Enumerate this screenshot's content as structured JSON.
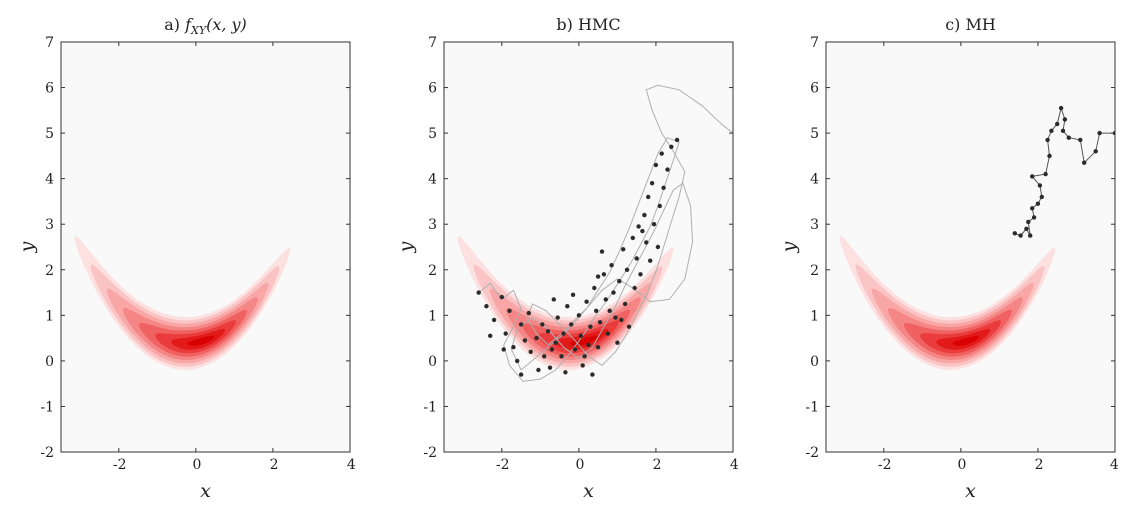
{
  "figure": {
    "background_color": "#f9f9f9",
    "contour_colors": [
      "#fde0e0",
      "#fbc4c4",
      "#f9a6a6",
      "#f58686",
      "#f06262",
      "#ea3c3c",
      "#e21a1a",
      "#d80000"
    ],
    "sample_color": "#2b2b2b",
    "trajectory_color": "#b0b0b0"
  },
  "chart_data": [
    {
      "type": "heatmap",
      "title": "a) f_XY(x, y)",
      "title_parts": {
        "prefix": "a) ",
        "f": "f",
        "sub": "XY",
        "args": "(x, y)"
      },
      "xlabel": "x",
      "ylabel": "y",
      "xlim": [
        -3.5,
        4
      ],
      "ylim": [
        -2,
        7
      ],
      "xticks": [
        "-2",
        "0",
        "2",
        "4"
      ],
      "yticks": [
        "-2",
        "-1",
        "0",
        "1",
        "2",
        "3",
        "4",
        "5",
        "6",
        "7"
      ],
      "grid": false,
      "density": "banana-shaped bivariate density (filled contours)"
    },
    {
      "type": "scatter",
      "title": "b) HMC",
      "xlabel": "x",
      "ylabel": "y",
      "xlim": [
        -3.5,
        4
      ],
      "ylim": [
        -2,
        7
      ],
      "xticks": [
        "-2",
        "0",
        "2",
        "4"
      ],
      "yticks": [
        "-2",
        "-1",
        "0",
        "1",
        "2",
        "3",
        "4",
        "5",
        "6",
        "7"
      ],
      "grid": false,
      "samples": [
        [
          -2.6,
          1.5
        ],
        [
          -2.4,
          1.2
        ],
        [
          -2.2,
          0.9
        ],
        [
          -2.0,
          1.4
        ],
        [
          -1.9,
          0.6
        ],
        [
          -1.7,
          0.3
        ],
        [
          -1.6,
          0.0
        ],
        [
          -1.5,
          0.8
        ],
        [
          -1.4,
          0.45
        ],
        [
          -1.3,
          1.05
        ],
        [
          -1.25,
          0.2
        ],
        [
          -1.1,
          0.5
        ],
        [
          -1.05,
          -0.2
        ],
        [
          -0.95,
          0.8
        ],
        [
          -0.9,
          0.1
        ],
        [
          -0.8,
          0.65
        ],
        [
          -0.75,
          -0.15
        ],
        [
          -0.6,
          0.4
        ],
        [
          -0.55,
          0.95
        ],
        [
          -0.45,
          0.1
        ],
        [
          -0.4,
          0.6
        ],
        [
          -0.35,
          -0.25
        ],
        [
          -0.2,
          0.8
        ],
        [
          -0.1,
          0.25
        ],
        [
          0.0,
          1.0
        ],
        [
          0.05,
          0.55
        ],
        [
          0.15,
          0.1
        ],
        [
          0.2,
          1.3
        ],
        [
          0.3,
          0.75
        ],
        [
          0.35,
          -0.3
        ],
        [
          0.4,
          1.6
        ],
        [
          0.45,
          1.1
        ],
        [
          0.5,
          0.3
        ],
        [
          0.55,
          0.85
        ],
        [
          0.65,
          1.9
        ],
        [
          0.7,
          1.35
        ],
        [
          0.75,
          0.6
        ],
        [
          0.85,
          2.1
        ],
        [
          0.9,
          1.5
        ],
        [
          0.95,
          0.95
        ],
        [
          1.0,
          0.4
        ],
        [
          1.05,
          1.75
        ],
        [
          1.15,
          2.45
        ],
        [
          1.2,
          1.25
        ],
        [
          1.25,
          2.0
        ],
        [
          1.3,
          0.75
        ],
        [
          1.4,
          2.7
        ],
        [
          1.45,
          1.6
        ],
        [
          1.5,
          2.25
        ],
        [
          1.55,
          2.95
        ],
        [
          1.6,
          1.9
        ],
        [
          1.7,
          3.2
        ],
        [
          1.75,
          2.6
        ],
        [
          1.8,
          3.6
        ],
        [
          1.85,
          2.2
        ],
        [
          1.9,
          3.9
        ],
        [
          1.95,
          3.0
        ],
        [
          2.0,
          4.3
        ],
        [
          2.05,
          2.5
        ],
        [
          2.1,
          3.4
        ],
        [
          2.15,
          4.55
        ],
        [
          2.2,
          3.8
        ],
        [
          2.3,
          4.2
        ],
        [
          2.4,
          4.7
        ],
        [
          2.55,
          4.85
        ],
        [
          -2.3,
          0.55
        ],
        [
          -1.8,
          1.1
        ],
        [
          -0.3,
          1.2
        ],
        [
          0.6,
          2.4
        ],
        [
          -0.7,
          0.25
        ],
        [
          0.1,
          -0.1
        ],
        [
          -1.5,
          -0.3
        ],
        [
          1.1,
          0.9
        ],
        [
          -0.15,
          1.45
        ],
        [
          0.8,
          1.1
        ],
        [
          -1.95,
          0.25
        ],
        [
          -0.65,
          1.35
        ],
        [
          0.25,
          0.35
        ],
        [
          1.65,
          2.85
        ],
        [
          0.5,
          1.85
        ]
      ],
      "trajectory": [
        [
          -2.6,
          1.5
        ],
        [
          -2.3,
          1.7
        ],
        [
          -2.0,
          1.35
        ],
        [
          -1.7,
          1.55
        ],
        [
          -1.5,
          1.15
        ],
        [
          -1.7,
          0.75
        ],
        [
          -1.95,
          0.35
        ],
        [
          -1.8,
          -0.1
        ],
        [
          -1.45,
          -0.45
        ],
        [
          -1.0,
          -0.4
        ],
        [
          -0.6,
          -0.2
        ],
        [
          -0.25,
          0.15
        ],
        [
          0.1,
          0.55
        ],
        [
          0.4,
          0.95
        ],
        [
          0.75,
          1.35
        ],
        [
          1.05,
          1.75
        ],
        [
          1.35,
          2.15
        ],
        [
          1.6,
          2.55
        ],
        [
          1.85,
          2.95
        ],
        [
          2.05,
          3.4
        ],
        [
          2.25,
          3.9
        ],
        [
          2.45,
          4.4
        ],
        [
          2.6,
          4.8
        ],
        [
          2.3,
          4.9
        ],
        [
          2.05,
          4.55
        ],
        [
          1.8,
          4.0
        ],
        [
          1.55,
          3.45
        ],
        [
          1.3,
          2.9
        ],
        [
          1.05,
          2.4
        ],
        [
          0.8,
          1.95
        ],
        [
          0.5,
          1.55
        ],
        [
          0.2,
          1.15
        ],
        [
          -0.1,
          0.85
        ],
        [
          -0.45,
          0.55
        ],
        [
          -0.8,
          0.3
        ],
        [
          -1.15,
          0.05
        ],
        [
          -1.5,
          -0.2
        ],
        [
          -1.75,
          0.25
        ],
        [
          -1.6,
          0.7
        ],
        [
          -1.2,
          0.95
        ],
        [
          -0.8,
          0.7
        ],
        [
          -0.4,
          0.3
        ],
        [
          0.0,
          0.05
        ],
        [
          0.35,
          0.3
        ],
        [
          0.65,
          0.75
        ],
        [
          0.95,
          1.2
        ],
        [
          1.2,
          1.65
        ],
        [
          1.45,
          2.05
        ],
        [
          1.7,
          2.45
        ],
        [
          1.95,
          2.85
        ],
        [
          2.2,
          3.3
        ],
        [
          2.45,
          3.75
        ],
        [
          2.7,
          3.9
        ],
        [
          2.9,
          3.4
        ],
        [
          2.95,
          2.6
        ],
        [
          2.75,
          1.8
        ],
        [
          2.35,
          1.35
        ],
        [
          1.85,
          1.3
        ],
        [
          1.4,
          1.6
        ],
        [
          1.0,
          1.8
        ],
        [
          0.6,
          1.55
        ],
        [
          0.25,
          1.2
        ],
        [
          -0.1,
          0.9
        ],
        [
          -0.45,
          0.6
        ],
        [
          -0.8,
          0.35
        ],
        [
          -1.1,
          0.6
        ],
        [
          -1.35,
          0.95
        ],
        [
          -1.2,
          1.25
        ],
        [
          -0.85,
          1.1
        ],
        [
          -0.5,
          0.8
        ],
        [
          -0.1,
          0.45
        ],
        [
          0.25,
          0.1
        ],
        [
          0.6,
          -0.1
        ],
        [
          0.95,
          0.2
        ],
        [
          1.25,
          0.6
        ],
        [
          1.5,
          1.0
        ],
        [
          1.75,
          1.45
        ],
        [
          2.0,
          1.95
        ],
        [
          2.2,
          2.5
        ],
        [
          2.4,
          3.05
        ],
        [
          2.6,
          3.6
        ],
        [
          2.75,
          4.15
        ],
        [
          2.45,
          4.6
        ],
        [
          2.15,
          5.0
        ],
        [
          1.9,
          5.5
        ],
        [
          1.75,
          5.95
        ],
        [
          2.05,
          6.05
        ],
        [
          2.6,
          5.95
        ],
        [
          3.2,
          5.6
        ],
        [
          3.7,
          5.2
        ],
        [
          4.0,
          5.0
        ]
      ]
    },
    {
      "type": "scatter",
      "title": "c) MH",
      "xlabel": "x",
      "ylabel": "y",
      "xlim": [
        -3.5,
        4
      ],
      "ylim": [
        -2,
        7
      ],
      "xticks": [
        "-2",
        "0",
        "2",
        "4"
      ],
      "yticks": [
        "-2",
        "-1",
        "0",
        "1",
        "2",
        "3",
        "4",
        "5",
        "6",
        "7"
      ],
      "grid": false,
      "samples": [
        [
          1.4,
          2.8
        ],
        [
          1.55,
          2.75
        ],
        [
          1.7,
          2.9
        ],
        [
          1.8,
          2.75
        ],
        [
          1.75,
          3.05
        ],
        [
          1.9,
          3.15
        ],
        [
          1.85,
          3.35
        ],
        [
          2.0,
          3.45
        ],
        [
          2.1,
          3.6
        ],
        [
          2.05,
          3.85
        ],
        [
          1.85,
          4.05
        ],
        [
          2.2,
          4.1
        ],
        [
          2.3,
          4.5
        ],
        [
          2.25,
          4.85
        ],
        [
          2.35,
          5.05
        ],
        [
          2.5,
          5.2
        ],
        [
          2.6,
          5.55
        ],
        [
          2.7,
          5.3
        ],
        [
          2.65,
          5.05
        ],
        [
          2.8,
          4.9
        ],
        [
          3.1,
          4.85
        ],
        [
          3.2,
          4.35
        ],
        [
          3.5,
          4.6
        ],
        [
          3.6,
          5.0
        ],
        [
          4.0,
          5.0
        ]
      ],
      "path": [
        [
          1.4,
          2.8
        ],
        [
          1.55,
          2.75
        ],
        [
          1.7,
          2.9
        ],
        [
          1.8,
          2.75
        ],
        [
          1.75,
          3.05
        ],
        [
          1.9,
          3.15
        ],
        [
          1.85,
          3.35
        ],
        [
          2.0,
          3.45
        ],
        [
          2.1,
          3.6
        ],
        [
          2.05,
          3.85
        ],
        [
          1.85,
          4.05
        ],
        [
          2.2,
          4.1
        ],
        [
          2.3,
          4.5
        ],
        [
          2.25,
          4.85
        ],
        [
          2.35,
          5.05
        ],
        [
          2.5,
          5.2
        ],
        [
          2.6,
          5.55
        ],
        [
          2.7,
          5.3
        ],
        [
          2.65,
          5.05
        ],
        [
          2.8,
          4.9
        ],
        [
          3.1,
          4.85
        ],
        [
          3.2,
          4.35
        ],
        [
          3.5,
          4.6
        ],
        [
          3.6,
          5.0
        ],
        [
          4.0,
          5.0
        ]
      ]
    }
  ]
}
